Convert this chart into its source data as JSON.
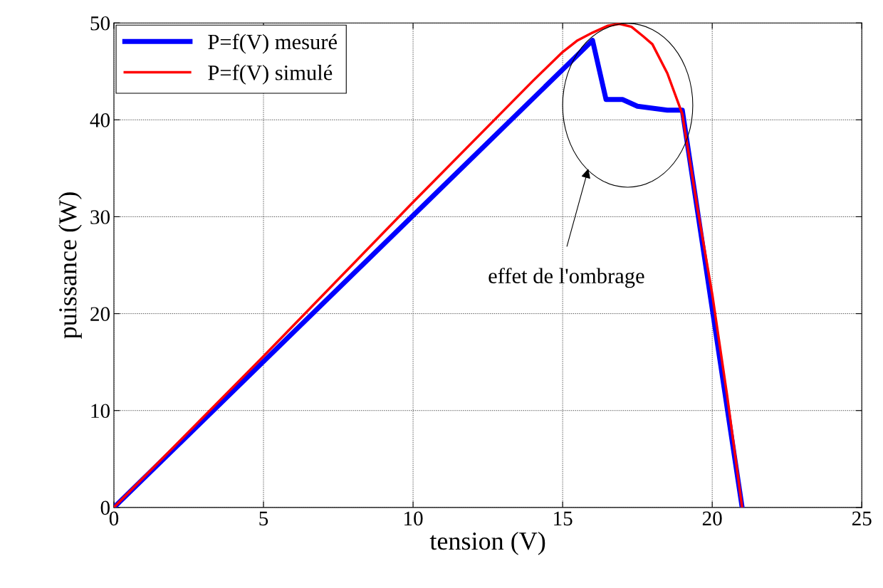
{
  "chart_data": {
    "type": "line",
    "xlabel": "tension (V)",
    "ylabel": "puissance (W)",
    "xlim": [
      0,
      25
    ],
    "ylim": [
      0,
      50
    ],
    "xticks": [
      0,
      5,
      10,
      15,
      20,
      25
    ],
    "yticks": [
      0,
      10,
      20,
      30,
      40,
      50
    ],
    "grid": true,
    "legend": "top left",
    "line_style": "solid",
    "marker": "none",
    "series": [
      {
        "name": "P=f(V) mesuré",
        "color": "#0000ff",
        "x": [
          0,
          16.0,
          16.45,
          17.0,
          17.5,
          18.5,
          19.0,
          21.0
        ],
        "values": [
          0,
          48.2,
          42.1,
          42.1,
          41.4,
          41.0,
          41.0,
          0
        ]
      },
      {
        "name": "P=f(V) simulé",
        "color": "#ff0000",
        "x": [
          0,
          5,
          10,
          14,
          15,
          15.5,
          16,
          16.5,
          16.9,
          17.3,
          17.7,
          18,
          18.5,
          19,
          19.5,
          20,
          20.5,
          21
        ],
        "values": [
          0,
          15.6,
          31.5,
          44,
          47,
          48.2,
          49,
          49.7,
          49.9,
          49.6,
          48.6,
          47.8,
          44.8,
          40.6,
          31,
          22,
          11.5,
          0
        ]
      }
    ],
    "annotations": [
      "effet de l'ombrage"
    ]
  }
}
